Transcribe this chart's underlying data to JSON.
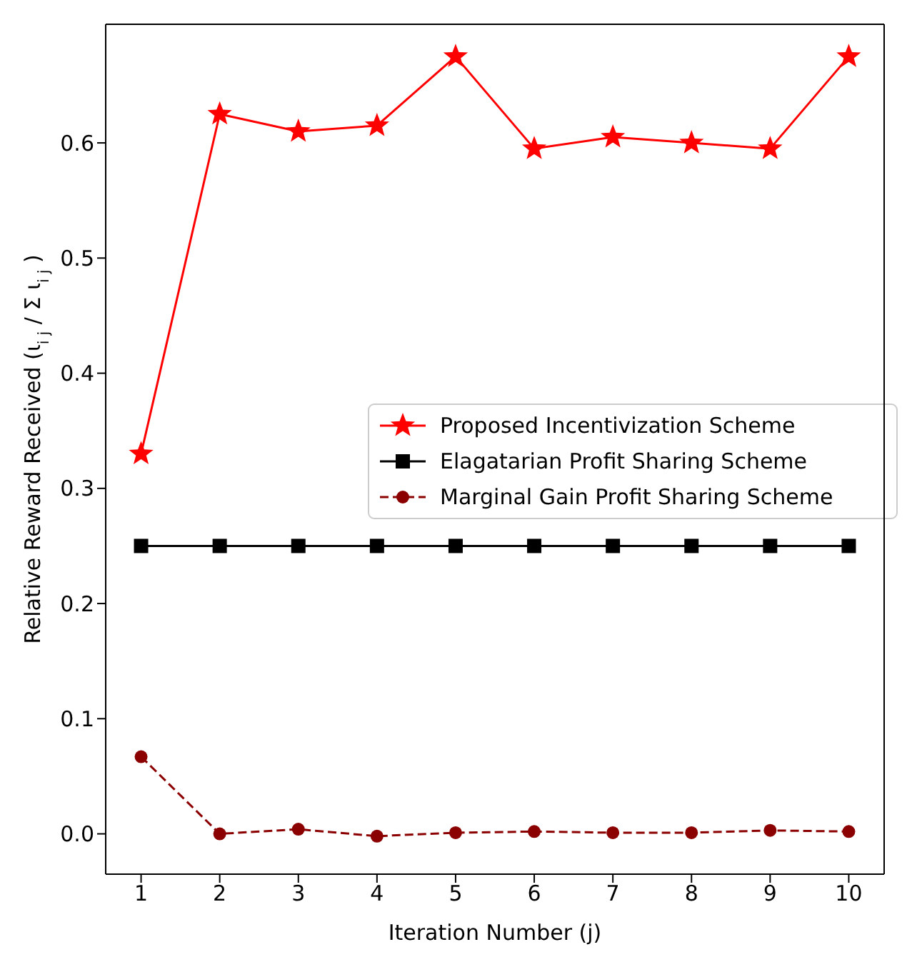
{
  "chart_data": {
    "type": "line",
    "xlabel": "Iteration Number (j)",
    "ylabel": "Relative Reward Received (ι$_{i j}$ / Σ ι$_{i j}$)",
    "x": [
      1,
      2,
      3,
      4,
      5,
      6,
      7,
      8,
      9,
      10
    ],
    "series": [
      {
        "name": "Proposed Incentivization Scheme",
        "color": "#ff0000",
        "marker": "star",
        "line_style": "solid",
        "values": [
          0.33,
          0.625,
          0.61,
          0.615,
          0.675,
          0.595,
          0.605,
          0.6,
          0.595,
          0.675
        ]
      },
      {
        "name": "Elagatarian Profit Sharing Scheme",
        "color": "#000000",
        "marker": "square",
        "line_style": "solid",
        "values": [
          0.25,
          0.25,
          0.25,
          0.25,
          0.25,
          0.25,
          0.25,
          0.25,
          0.25,
          0.25
        ]
      },
      {
        "name": "Marginal Gain Profit Sharing Scheme",
        "color": "#8b0000",
        "marker": "circle",
        "line_style": "dashed",
        "values": [
          0.067,
          0,
          0.004,
          -0.002,
          0.001,
          0.002,
          0.001,
          0.001,
          0.003,
          0.002
        ]
      }
    ],
    "xlim": [
      0.55,
      10.45
    ],
    "xticks": [
      1,
      2,
      3,
      4,
      5,
      6,
      7,
      8,
      9,
      10
    ],
    "ylim": [
      -0.035,
      0.703
    ],
    "yticks": [
      {
        "value": 0,
        "label": "0.0"
      },
      0.1,
      0.2,
      0.3,
      0.4,
      0.5,
      0.6
    ],
    "grid": false,
    "legend": "right"
  }
}
